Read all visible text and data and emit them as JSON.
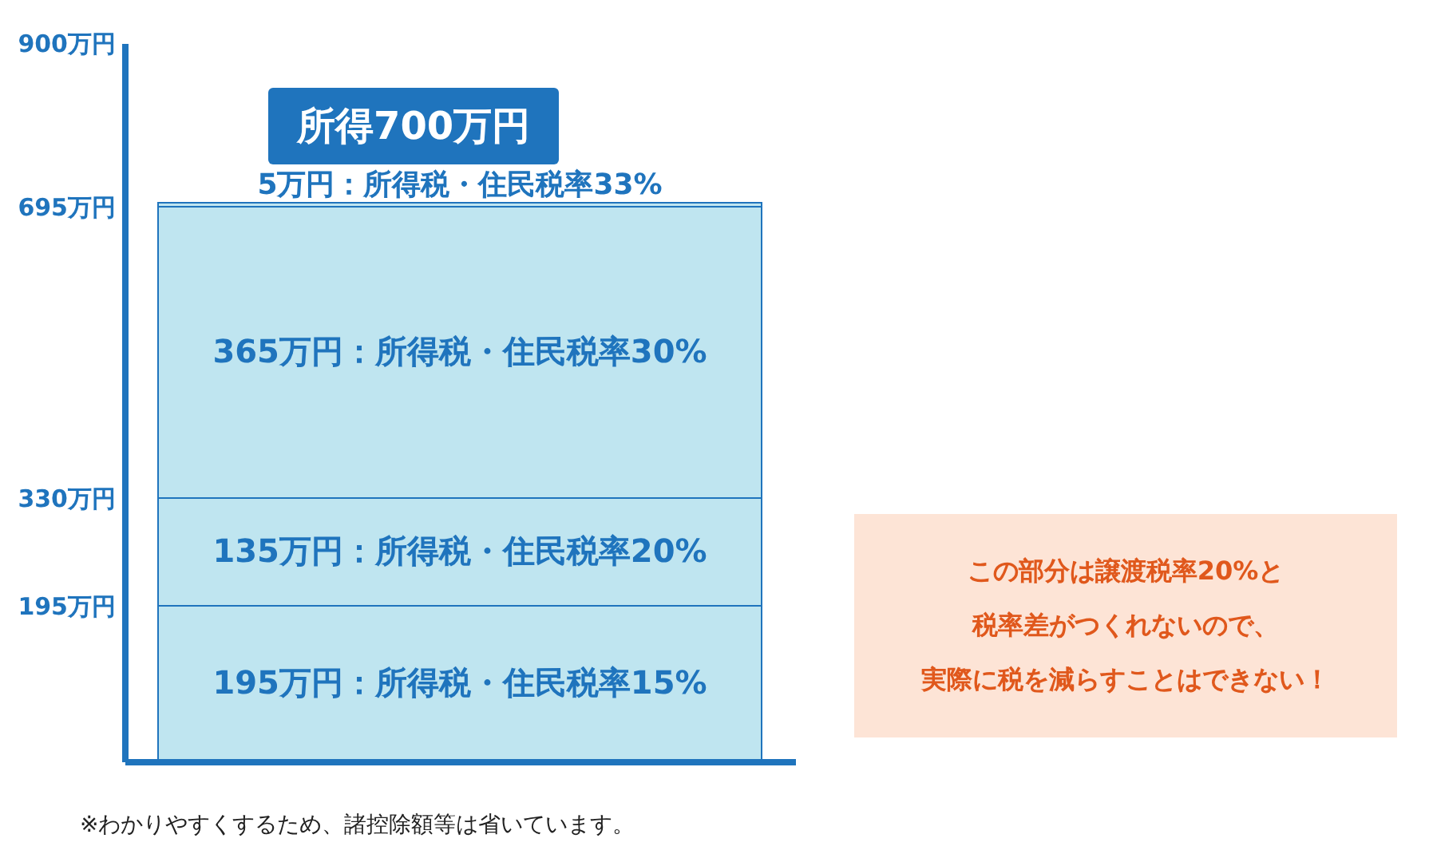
{
  "chart_data": {
    "type": "bar",
    "title": "所得700万円",
    "categories": [
      null
    ],
    "stacked": true,
    "series": [
      {
        "color": "#bfe5f0",
        "values": [
          195
        ],
        "value_labels": [
          "195万円：所得税・住民税率15%"
        ]
      },
      {
        "color": "#bfe5f0",
        "values": [
          135
        ],
        "value_labels": [
          "135万円：所得税・住民税率20%"
        ]
      },
      {
        "color": "#bfe5f0",
        "values": [
          365
        ],
        "value_labels": [
          "365万円：所得税・住民税率30%"
        ]
      },
      {
        "color": "#bfe5f0",
        "values": [
          5
        ],
        "value_labels": [
          "5万円：所得税・住民税率33%"
        ]
      }
    ],
    "ylim": [
      0,
      900
    ],
    "yticks": [
      {
        "value": 195,
        "label": "195万円"
      },
      {
        "value": 330,
        "label": "330万円"
      },
      {
        "value": 695,
        "label": "695万円"
      },
      {
        "value": 900,
        "label": "900万円"
      }
    ],
    "grid": false,
    "annotations": [
      "この部分は譲渡税率20%と",
      "税率差がつくれないので、",
      "実際に税を減らすことはできない！",
      "※わかりやすくするため、諸控除額等は省いています。"
    ]
  }
}
